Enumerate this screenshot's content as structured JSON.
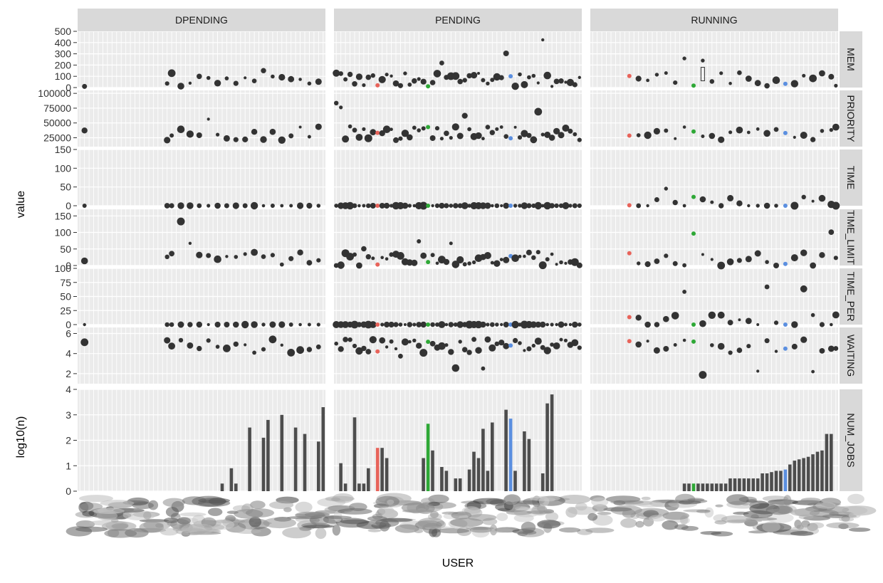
{
  "chart_data": {
    "type": "faceted-boxplot-bar",
    "xlabel": "USER",
    "ylabel_top": "value",
    "ylabel_bottom": "log10(n)",
    "columns": [
      "DPENDING",
      "PENDING",
      "RUNNING"
    ],
    "rows": [
      {
        "label": "MEM",
        "ylim": [
          0,
          500
        ],
        "ticks": [
          0,
          100,
          200,
          300,
          400,
          500
        ]
      },
      {
        "label": "PRIORITY",
        "ylim": [
          10000,
          105000
        ],
        "ticks": [
          25000,
          50000,
          75000,
          100000
        ]
      },
      {
        "label": "TIME",
        "ylim": [
          0,
          150
        ],
        "ticks": [
          0,
          50,
          100,
          150
        ]
      },
      {
        "label": "TIME_LIMIT",
        "ylim": [
          0,
          170
        ],
        "ticks": [
          0,
          50,
          100,
          150
        ]
      },
      {
        "label": "TIME_PER",
        "ylim": [
          0,
          100
        ],
        "ticks": [
          0,
          25,
          50,
          75,
          100
        ]
      },
      {
        "label": "WAITING",
        "ylim": [
          1,
          6.6
        ],
        "ticks": [
          2,
          4,
          6
        ]
      },
      {
        "label": "NUM_JOBS",
        "ylim": [
          0,
          4
        ],
        "ticks": [
          0,
          1,
          2,
          3,
          4
        ]
      }
    ],
    "highlight_colors": [
      "#e8635a",
      "#2ea836",
      "#5b8fe0"
    ],
    "base_color": "#333333",
    "num_jobs": {
      "DPENDING": [
        [
          4,
          0
        ],
        [
          5,
          0
        ],
        [
          6,
          0
        ],
        [
          7,
          0
        ],
        [
          8,
          0
        ],
        [
          9,
          0
        ],
        [
          10,
          0
        ],
        [
          11,
          0
        ],
        [
          12,
          0
        ],
        [
          13,
          0
        ],
        [
          14,
          0
        ],
        [
          15,
          0
        ],
        [
          16,
          0
        ],
        [
          17,
          0
        ],
        [
          18,
          0
        ],
        [
          19,
          0
        ],
        [
          20,
          0
        ],
        [
          21,
          0
        ],
        [
          22,
          0
        ],
        [
          23,
          0
        ],
        [
          24,
          0
        ],
        [
          25,
          0
        ],
        [
          26,
          0
        ],
        [
          27,
          0
        ],
        [
          28,
          0
        ],
        [
          29,
          0
        ],
        [
          30,
          0
        ],
        [
          31,
          0.3
        ],
        [
          32,
          0
        ],
        [
          33,
          0.9
        ],
        [
          34,
          0.3
        ],
        [
          35,
          0
        ],
        [
          36,
          0
        ],
        [
          37,
          2.5
        ],
        [
          38,
          0
        ],
        [
          39,
          0
        ],
        [
          40,
          2.1
        ],
        [
          41,
          2.8
        ],
        [
          42,
          0
        ],
        [
          43,
          0
        ],
        [
          44,
          3.0
        ],
        [
          45,
          0
        ],
        [
          46,
          0
        ],
        [
          47,
          2.5
        ],
        [
          48,
          0
        ],
        [
          49,
          2.25
        ],
        [
          50,
          0
        ],
        [
          51,
          0
        ],
        [
          52,
          1.95
        ],
        [
          53,
          3.3
        ]
      ],
      "PENDING": [
        [
          1,
          1.1
        ],
        [
          2,
          0.3
        ],
        [
          3,
          0
        ],
        [
          4,
          2.9
        ],
        [
          5,
          0.3
        ],
        [
          6,
          0.3
        ],
        [
          7,
          0.9
        ],
        [
          8,
          0
        ],
        [
          9,
          1.7,
          0
        ],
        [
          10,
          1.7
        ],
        [
          11,
          1.3
        ],
        [
          12,
          0
        ],
        [
          13,
          0
        ],
        [
          14,
          0
        ],
        [
          15,
          0
        ],
        [
          16,
          0
        ],
        [
          17,
          0
        ],
        [
          18,
          0
        ],
        [
          19,
          1.3
        ],
        [
          20,
          2.65,
          1
        ],
        [
          21,
          1.6
        ],
        [
          22,
          0
        ],
        [
          23,
          0.95
        ],
        [
          24,
          0.8
        ],
        [
          25,
          0
        ],
        [
          26,
          0.5
        ],
        [
          27,
          0.5
        ],
        [
          28,
          0
        ],
        [
          29,
          0.85
        ],
        [
          30,
          1.55
        ],
        [
          31,
          1.3
        ],
        [
          32,
          2.45
        ],
        [
          33,
          0.8
        ],
        [
          34,
          2.7
        ],
        [
          35,
          0
        ],
        [
          36,
          0
        ],
        [
          37,
          3.2
        ],
        [
          38,
          2.85,
          2
        ],
        [
          39,
          0.8
        ],
        [
          40,
          0
        ],
        [
          41,
          2.35
        ],
        [
          42,
          2.05
        ],
        [
          43,
          0
        ],
        [
          44,
          0
        ],
        [
          45,
          0.7
        ],
        [
          46,
          3.45
        ],
        [
          47,
          3.8
        ]
      ],
      "RUNNING": [
        [
          20,
          0.3
        ],
        [
          21,
          0.3
        ],
        [
          22,
          0.3,
          1
        ],
        [
          23,
          0.3
        ],
        [
          24,
          0.3
        ],
        [
          25,
          0.3
        ],
        [
          26,
          0.3
        ],
        [
          27,
          0.3
        ],
        [
          28,
          0.3
        ],
        [
          29,
          0.3
        ],
        [
          30,
          0.5
        ],
        [
          31,
          0.5
        ],
        [
          32,
          0.5
        ],
        [
          33,
          0.5
        ],
        [
          34,
          0.5
        ],
        [
          35,
          0.5
        ],
        [
          36,
          0.5
        ],
        [
          37,
          0.7
        ],
        [
          38,
          0.7
        ],
        [
          39,
          0.75
        ],
        [
          40,
          0.8
        ],
        [
          41,
          0.8
        ],
        [
          42,
          0.85,
          2
        ],
        [
          43,
          1.05
        ],
        [
          44,
          1.2
        ],
        [
          45,
          1.25
        ],
        [
          46,
          1.3
        ],
        [
          47,
          1.35
        ],
        [
          48,
          1.45
        ],
        [
          49,
          1.55
        ],
        [
          50,
          1.6
        ],
        [
          51,
          2.25
        ],
        [
          52,
          2.25
        ]
      ]
    }
  }
}
